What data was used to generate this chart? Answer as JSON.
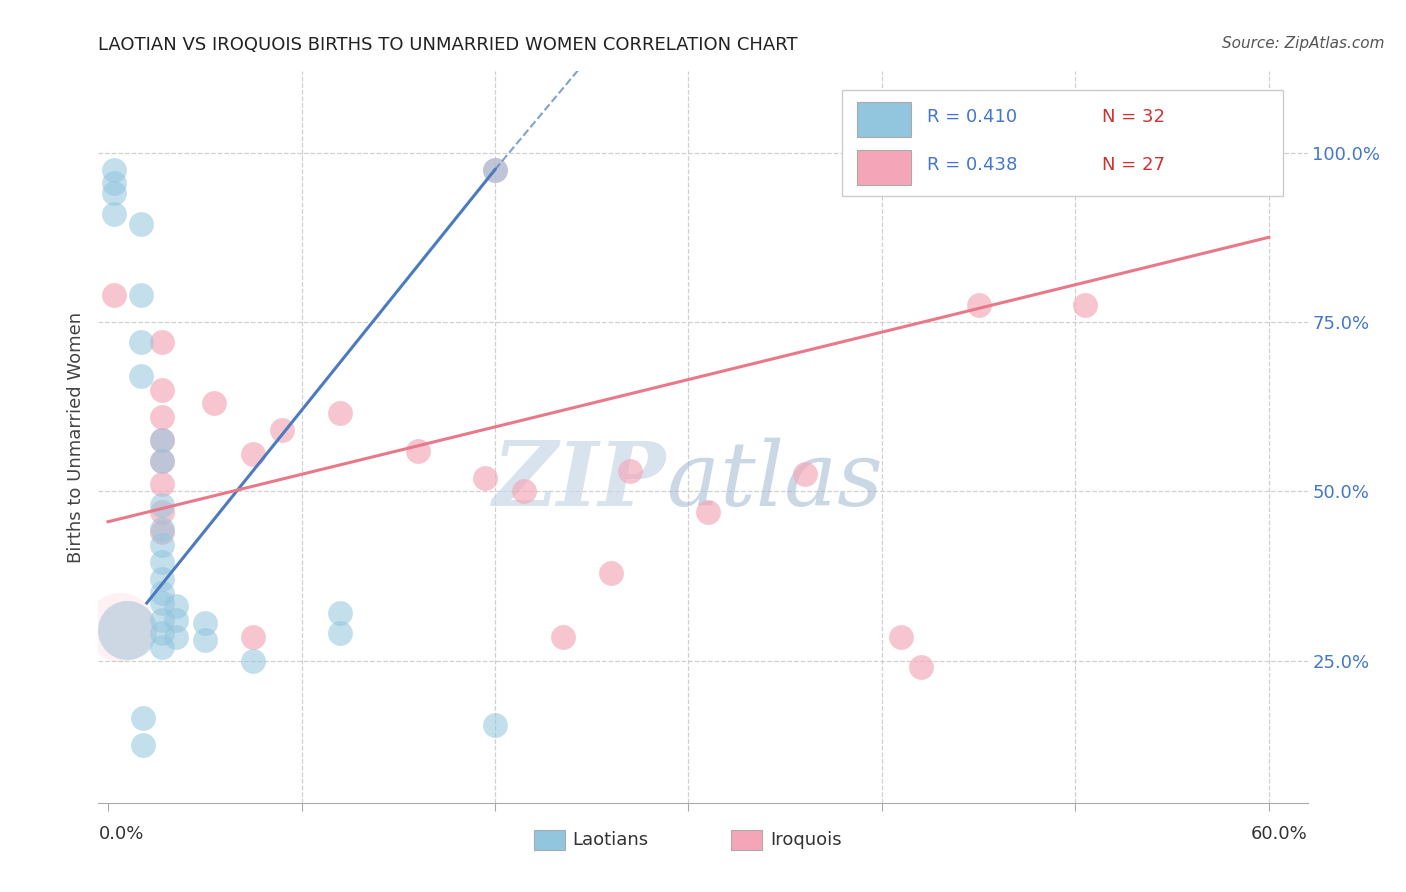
{
  "title": "LAOTIAN VS IROQUOIS BIRTHS TO UNMARRIED WOMEN CORRELATION CHART",
  "source": "Source: ZipAtlas.com",
  "ylabel": "Births to Unmarried Women",
  "ylabel_right_ticks": [
    "25.0%",
    "50.0%",
    "75.0%",
    "100.0%"
  ],
  "ylabel_right_vals": [
    0.25,
    0.5,
    0.75,
    1.0
  ],
  "x_ticks": [
    0.0,
    0.1,
    0.2,
    0.3,
    0.4,
    0.5,
    0.6
  ],
  "legend_blue_r": "R = 0.410",
  "legend_blue_n": "N = 32",
  "legend_pink_r": "R = 0.438",
  "legend_pink_n": "N = 27",
  "legend_labels": [
    "Laotians",
    "Iroquois"
  ],
  "blue_color": "#92C5DE",
  "pink_color": "#F4A6B8",
  "blue_line_color": "#4B7BBE",
  "pink_line_color": "#E8788A",
  "blue_scatter": [
    [
      0.003,
      0.975
    ],
    [
      0.003,
      0.955
    ],
    [
      0.017,
      0.895
    ],
    [
      0.017,
      0.79
    ],
    [
      0.017,
      0.72
    ],
    [
      0.017,
      0.67
    ],
    [
      0.028,
      0.575
    ],
    [
      0.028,
      0.545
    ],
    [
      0.028,
      0.48
    ],
    [
      0.028,
      0.445
    ],
    [
      0.028,
      0.42
    ],
    [
      0.028,
      0.395
    ],
    [
      0.028,
      0.37
    ],
    [
      0.028,
      0.35
    ],
    [
      0.028,
      0.335
    ],
    [
      0.028,
      0.31
    ],
    [
      0.028,
      0.29
    ],
    [
      0.028,
      0.27
    ],
    [
      0.035,
      0.33
    ],
    [
      0.035,
      0.31
    ],
    [
      0.035,
      0.285
    ],
    [
      0.05,
      0.305
    ],
    [
      0.05,
      0.28
    ],
    [
      0.075,
      0.25
    ],
    [
      0.12,
      0.32
    ],
    [
      0.12,
      0.29
    ],
    [
      0.018,
      0.165
    ],
    [
      0.018,
      0.125
    ],
    [
      0.2,
      0.155
    ],
    [
      0.2,
      0.975
    ],
    [
      0.003,
      0.94
    ],
    [
      0.003,
      0.91
    ]
  ],
  "pink_scatter": [
    [
      0.2,
      0.975
    ],
    [
      0.003,
      0.79
    ],
    [
      0.028,
      0.72
    ],
    [
      0.028,
      0.65
    ],
    [
      0.028,
      0.61
    ],
    [
      0.028,
      0.575
    ],
    [
      0.028,
      0.545
    ],
    [
      0.028,
      0.51
    ],
    [
      0.028,
      0.47
    ],
    [
      0.028,
      0.44
    ],
    [
      0.055,
      0.63
    ],
    [
      0.075,
      0.555
    ],
    [
      0.09,
      0.59
    ],
    [
      0.12,
      0.615
    ],
    [
      0.16,
      0.56
    ],
    [
      0.195,
      0.52
    ],
    [
      0.215,
      0.5
    ],
    [
      0.27,
      0.53
    ],
    [
      0.31,
      0.47
    ],
    [
      0.36,
      0.525
    ],
    [
      0.26,
      0.38
    ],
    [
      0.41,
      0.285
    ],
    [
      0.45,
      0.775
    ],
    [
      0.505,
      0.775
    ],
    [
      0.075,
      0.285
    ],
    [
      0.235,
      0.285
    ],
    [
      0.42,
      0.24
    ]
  ],
  "blue_trendline_solid": [
    [
      0.02,
      0.335
    ],
    [
      0.2,
      0.975
    ]
  ],
  "blue_trendline_dashed": [
    [
      0.2,
      0.975
    ],
    [
      0.26,
      1.18
    ]
  ],
  "pink_trendline": [
    [
      0.0,
      0.455
    ],
    [
      0.6,
      0.875
    ]
  ],
  "xlim": [
    -0.005,
    0.62
  ],
  "ylim": [
    0.04,
    1.12
  ],
  "watermark_zip": "ZIP",
  "watermark_atlas": "atlas",
  "background_color": "#ffffff",
  "grid_color": "#d0d0d0"
}
